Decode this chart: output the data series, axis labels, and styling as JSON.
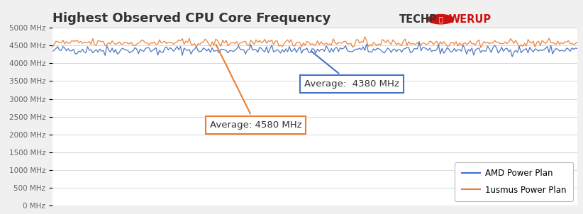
{
  "title": "Highest Observed CPU Core Frequency",
  "ylim": [
    0,
    5000
  ],
  "yticks": [
    0,
    500,
    1000,
    1500,
    2000,
    2500,
    3000,
    3500,
    4000,
    4500,
    5000
  ],
  "ytick_labels": [
    "0 MHz",
    "500 MHz",
    "1000 MHz",
    "1500 MHz",
    "2000 MHz",
    "2500 MHz",
    "3000 MHz",
    "3500 MHz",
    "4000 MHz",
    "4500 MHz",
    "5000 MHz"
  ],
  "blue_avg": 4380,
  "orange_avg": 4580,
  "blue_color": "#4472C4",
  "orange_color": "#ED7D31",
  "blue_label": "AMD Power Plan",
  "orange_label": "1usmus Power Plan",
  "n_points": 300,
  "blue_noise_scale": 60,
  "orange_noise_scale": 55,
  "annotation_blue_text": "Average:  4380 MHz",
  "annotation_orange_text": "Average: 4580 MHz",
  "background_color": "#f0f0f0",
  "plot_bg_color": "#ffffff",
  "grid_color": "#d8d8d8",
  "title_fontsize": 13,
  "legend_fontsize": 8.5,
  "tick_fontsize": 7.5
}
